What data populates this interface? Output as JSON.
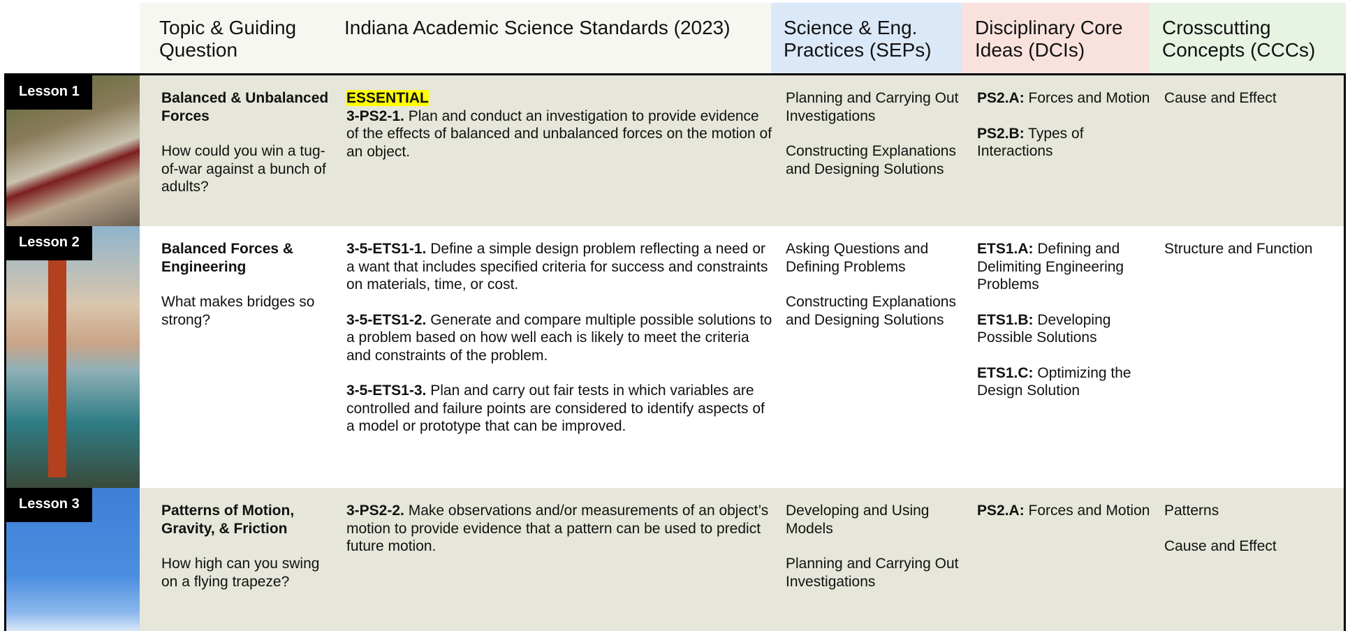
{
  "header": {
    "columns": [
      "Topic & Guiding Question",
      "Indiana Academic Science Standards (2023)",
      "Science & Eng. Practices (SEPs)",
      "Disciplinary Core Ideas (DCIs)",
      "Crosscutting Concepts (CCCs)"
    ]
  },
  "rows": [
    {
      "lesson": "Lesson 1",
      "topic": "Balanced & Unbalanced Forces",
      "question": "How could you win a tug-of-war against a bunch of adults?",
      "tag": "ESSENTIAL",
      "standards": [
        {
          "code": "3-PS2-1.",
          "text": "Plan and conduct an investigation to provide evidence of the effects of balanced and unbalanced forces on the motion of an object."
        }
      ],
      "seps": [
        "Planning and Carrying Out Investigations",
        "Constructing Explanations and Designing Solutions"
      ],
      "dcis": [
        {
          "code": "PS2.A:",
          "text": "Forces and Motion"
        },
        {
          "code": "PS2.B:",
          "text": "Types of Interactions"
        }
      ],
      "cccs": [
        "Cause and Effect"
      ]
    },
    {
      "lesson": "Lesson 2",
      "topic": "Balanced Forces & Engineering",
      "question": "What makes bridges so strong?",
      "standards": [
        {
          "code": "3-5-ETS1-1.",
          "text": "Define a simple design problem reflecting a need or a want that includes specified criteria for success and constraints on materials, time, or cost."
        },
        {
          "code": "3-5-ETS1-2.",
          "text": "Generate and compare multiple possible solutions to a problem based on how well each is likely to meet the criteria and constraints of the problem."
        },
        {
          "code": "3-5-ETS1-3.",
          "text": "Plan and carry out fair tests in which variables are controlled and failure points are considered to identify aspects of a model or prototype that can be improved."
        }
      ],
      "seps": [
        "Asking Questions and Defining Problems",
        "Constructing Explanations and Designing Solutions"
      ],
      "dcis": [
        {
          "code": "ETS1.A:",
          "text": "Defining and Delimiting Engineering Problems"
        },
        {
          "code": "ETS1.B:",
          "text": "Developing Possible Solutions"
        },
        {
          "code": "ETS1.C:",
          "text": "Optimizing the Design Solution"
        }
      ],
      "cccs": [
        "Structure and Function"
      ]
    },
    {
      "lesson": "Lesson 3",
      "topic": "Patterns of Motion, Gravity, & Friction",
      "question": "How high can you swing on a flying trapeze?",
      "standards": [
        {
          "code": "3-PS2-2.",
          "text": "Make observations and/or measurements of an object’s motion to provide evidence that a pattern can be used to predict future motion."
        }
      ],
      "seps": [
        "Developing and Using Models",
        "Planning and Carrying Out Investigations"
      ],
      "dcis": [
        {
          "code": "PS2.A:",
          "text": "Forces and Motion"
        }
      ],
      "cccs": [
        "Patterns",
        "Cause and Effect"
      ]
    }
  ]
}
